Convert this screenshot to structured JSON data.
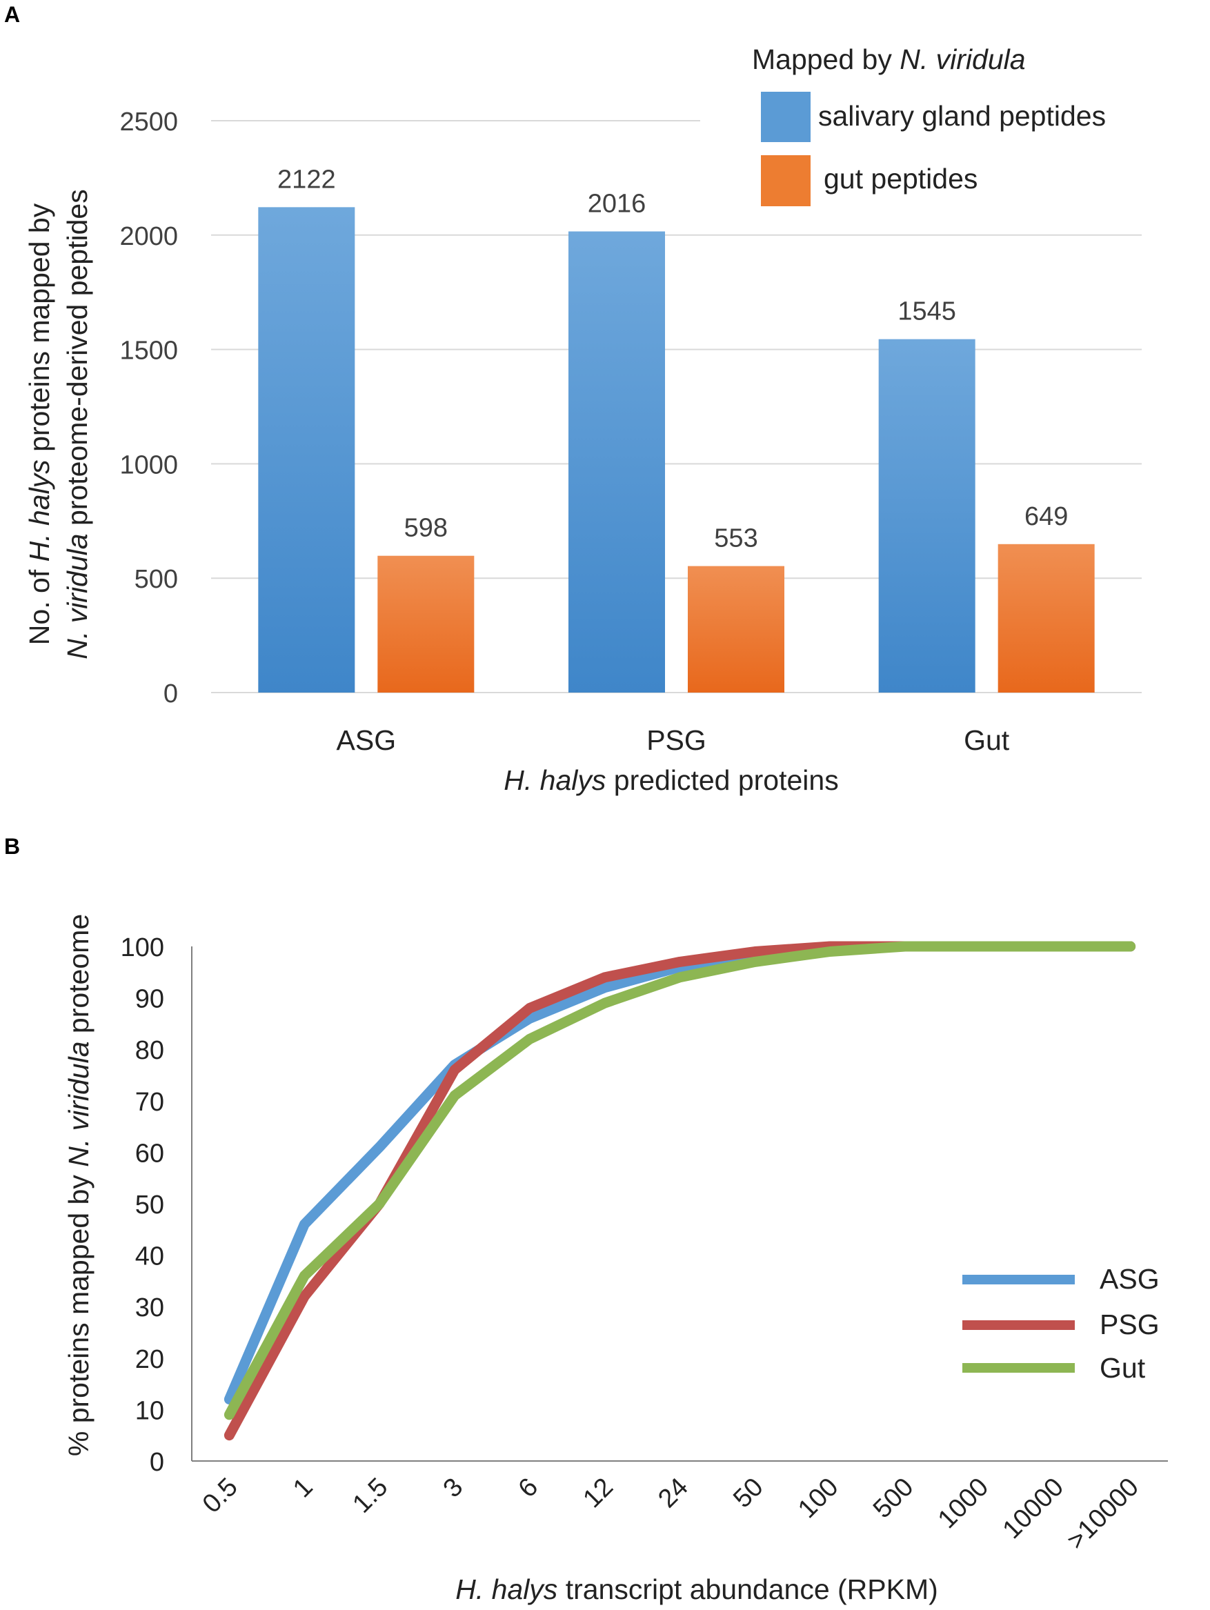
{
  "panel_labels": {
    "a": "A",
    "b": "B"
  },
  "colors": {
    "blue": "#5B9BD5",
    "orange": "#ED7D31",
    "red": "#C0504D",
    "green": "#8DB653",
    "grid": "#D9D9D9",
    "axis": "#7F7F7F"
  },
  "chart_data": [
    {
      "type": "bar",
      "title": "",
      "categories": [
        "ASG",
        "PSG",
        "Gut"
      ],
      "series": [
        {
          "name": "salivary gland peptides",
          "values": [
            2122,
            2016,
            1545
          ]
        },
        {
          "name": "gut peptides",
          "values": [
            598,
            553,
            649
          ]
        }
      ],
      "legend_title": {
        "prefix": "Mapped by ",
        "italic": "N. viridula"
      },
      "xlabel": {
        "italic": "H. halys",
        "rest": " predicted proteins"
      },
      "ylabel": {
        "line1": {
          "prefix": "No. of ",
          "italic": "H. halys",
          "rest": " proteins mapped by"
        },
        "line2": {
          "italic": "N. viridula",
          "rest": " proteome-derived peptides"
        }
      },
      "yticks": [
        0,
        500,
        1000,
        1500,
        2000,
        2500
      ],
      "ylim": [
        0,
        2500
      ],
      "grid": true,
      "legend_position": "top-right"
    },
    {
      "type": "line",
      "categories": [
        "0.5",
        "1",
        "1.5",
        "3",
        "6",
        "12",
        "24",
        "50",
        "100",
        "500",
        "1000",
        "10000",
        ">10000"
      ],
      "series": [
        {
          "name": "ASG",
          "values": [
            12,
            46,
            61,
            77,
            86,
            92,
            96,
            98,
            100,
            100,
            100,
            100,
            100
          ]
        },
        {
          "name": "PSG",
          "values": [
            5,
            32,
            50,
            76,
            88,
            94,
            97,
            99,
            100,
            100,
            100,
            100,
            100
          ]
        },
        {
          "name": "Gut",
          "values": [
            9,
            36,
            50,
            71,
            82,
            89,
            94,
            97,
            99,
            100,
            100,
            100,
            100
          ]
        }
      ],
      "xlabel": {
        "italic": "H. halys",
        "rest": " transcript abundance (RPKM)"
      },
      "ylabel": {
        "prefix": "% proteins mapped by ",
        "italic": "N. viridula",
        "rest": " proteome"
      },
      "yticks": [
        0,
        10,
        20,
        30,
        40,
        50,
        60,
        70,
        80,
        90,
        100
      ],
      "ylim": [
        0,
        100
      ],
      "grid": false,
      "legend_position": "right"
    }
  ]
}
